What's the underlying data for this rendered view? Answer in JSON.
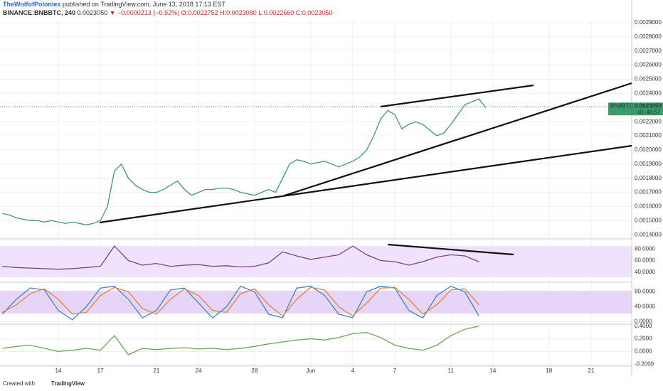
{
  "header": {
    "author": "TheWolfofPoloniex",
    "published": "published on TradingView.com, June 13, 2018 17:13 EST",
    "symbol": "BINANCE:BNBBTC, 240",
    "price": "0.0023050",
    "change": "▼ −0.0000213 (−0.92%)",
    "ohlc": [
      "O:0.0022752",
      "H:0.0023080",
      "L:0.0022660",
      "C:0.0023050"
    ]
  },
  "footer": {
    "created": "Created with",
    "brand": "TradingView"
  },
  "chart_data": [
    {
      "type": "line",
      "symbol": "BNBBTC",
      "countdown": "01:46:57",
      "last_price": {
        "value": 0.002305,
        "label": "0.0023050"
      },
      "color": "#3c9b6e",
      "x": [
        10,
        10.5,
        11,
        11.5,
        12,
        12.5,
        13,
        13.5,
        14,
        14.5,
        15,
        15.5,
        16,
        16.5,
        17,
        17.5,
        18,
        18.5,
        19,
        19.5,
        20,
        20.5,
        21,
        21.5,
        22,
        22.5,
        23,
        23.5,
        24,
        24.5,
        25,
        25.5,
        26,
        26.5,
        27,
        27.5,
        28,
        28.5,
        29,
        29.5,
        30,
        30.5,
        31,
        31.5,
        32,
        32.5,
        33,
        33.5,
        34,
        34.5,
        35,
        35.5,
        36,
        36.5,
        37,
        37.5,
        38,
        38.5,
        39,
        39.5,
        40,
        40.5,
        41,
        41.5,
        42,
        42.5,
        43,
        43.5,
        44,
        44.5
      ],
      "values": [
        0.00155,
        0.00154,
        0.00152,
        0.00151,
        0.0015,
        0.0015,
        0.00149,
        0.0015,
        0.00149,
        0.00148,
        0.00149,
        0.00148,
        0.00147,
        0.00148,
        0.0015,
        0.0016,
        0.00185,
        0.0019,
        0.0018,
        0.00175,
        0.00172,
        0.0017,
        0.0017,
        0.00172,
        0.00175,
        0.00178,
        0.00172,
        0.00168,
        0.0017,
        0.00172,
        0.00172,
        0.00173,
        0.00173,
        0.00172,
        0.0017,
        0.00169,
        0.00168,
        0.0017,
        0.00172,
        0.0017,
        0.0018,
        0.0019,
        0.00193,
        0.00192,
        0.0019,
        0.00191,
        0.00192,
        0.0019,
        0.00188,
        0.0019,
        0.00192,
        0.00195,
        0.002,
        0.0021,
        0.00222,
        0.00228,
        0.00225,
        0.00215,
        0.00218,
        0.0022,
        0.00218,
        0.00214,
        0.0021,
        0.00212,
        0.00218,
        0.00225,
        0.00232,
        0.00234,
        0.00236,
        0.0023
      ],
      "xlim": [
        9.84,
        54.9
      ],
      "ylim": [
        0.001376,
        0.00292
      ],
      "yticks": [
        {
          "value": 0.0014,
          "label": "0.0014000"
        },
        {
          "value": 0.0015,
          "label": "0.0015000"
        },
        {
          "value": 0.0016,
          "label": "0.0016000"
        },
        {
          "value": 0.0017,
          "label": "0.0017000"
        },
        {
          "value": 0.0018,
          "label": "0.0018000"
        },
        {
          "value": 0.0019,
          "label": "0.0019000"
        },
        {
          "value": 0.002,
          "label": "0.0020000"
        },
        {
          "value": 0.0021,
          "label": "0.0021000"
        },
        {
          "value": 0.0022,
          "label": "0.0022000"
        },
        {
          "value": 0.0024,
          "label": "0.0024000"
        },
        {
          "value": 0.0025,
          "label": "0.0025000"
        },
        {
          "value": 0.0026,
          "label": "0.0026000"
        },
        {
          "value": 0.0027,
          "label": "0.0027000"
        },
        {
          "value": 0.0028,
          "label": "0.0028000"
        },
        {
          "value": 0.0029,
          "label": "0.0029000"
        }
      ]
    },
    {
      "type": "line",
      "color": "#7b3f98",
      "x": [
        10,
        11,
        12,
        13,
        14,
        15,
        16,
        17,
        18,
        19,
        20,
        21,
        22,
        23,
        24,
        25,
        26,
        27,
        28,
        29,
        30,
        31,
        32,
        33,
        34,
        35,
        36,
        37,
        38,
        39,
        40,
        41,
        42,
        43,
        44
      ],
      "values": [
        50,
        48,
        47,
        46,
        45,
        46,
        48,
        50,
        85,
        60,
        52,
        55,
        50,
        52,
        53,
        50,
        51,
        49,
        50,
        56,
        75,
        68,
        62,
        66,
        70,
        85,
        70,
        60,
        58,
        52,
        58,
        66,
        70,
        68,
        58
      ],
      "xlim": [
        9.84,
        54.9
      ],
      "ylim": [
        25,
        95
      ],
      "yticks": [
        {
          "value": 40,
          "label": "40.0000"
        },
        {
          "value": 60,
          "label": "60.0000"
        },
        {
          "value": 80,
          "label": "80.0000"
        }
      ]
    },
    {
      "type": "line",
      "x": [
        10,
        11,
        12,
        13,
        14,
        15,
        16,
        17,
        18,
        19,
        20,
        21,
        22,
        23,
        24,
        25,
        26,
        27,
        28,
        29,
        30,
        31,
        32,
        33,
        34,
        35,
        36,
        37,
        38,
        39,
        40,
        41,
        42,
        43,
        44
      ],
      "series": [
        {
          "color": "#3d85c6",
          "values": [
            20,
            60,
            90,
            85,
            30,
            5,
            40,
            90,
            95,
            60,
            10,
            30,
            85,
            90,
            50,
            10,
            40,
            95,
            80,
            20,
            10,
            90,
            95,
            70,
            20,
            10,
            80,
            95,
            90,
            30,
            10,
            70,
            95,
            80,
            15
          ]
        },
        {
          "color": "#e8813b",
          "values": [
            25,
            45,
            75,
            88,
            60,
            20,
            25,
            70,
            92,
            80,
            35,
            20,
            60,
            88,
            70,
            30,
            25,
            75,
            88,
            45,
            15,
            60,
            92,
            85,
            40,
            15,
            50,
            90,
            92,
            60,
            20,
            45,
            85,
            88,
            45
          ]
        }
      ],
      "xlim": [
        9.84,
        54.9
      ],
      "ylim": [
        -5,
        100
      ],
      "yticks": [
        {
          "value": 0,
          "label": "0.0000"
        },
        {
          "value": 40,
          "label": "40.0000"
        },
        {
          "value": 80,
          "label": "80.0000"
        }
      ]
    },
    {
      "type": "line",
      "color": "#6aa84f",
      "x": [
        10,
        11,
        12,
        13,
        14,
        15,
        16,
        17,
        18,
        19,
        20,
        21,
        22,
        23,
        24,
        25,
        26,
        27,
        28,
        29,
        30,
        31,
        32,
        33,
        34,
        35,
        36,
        37,
        38,
        39,
        40,
        41,
        42,
        43,
        44
      ],
      "values": [
        0.05,
        0.08,
        0.1,
        0.05,
        0,
        0.02,
        0.05,
        0.02,
        0.25,
        -0.05,
        0.05,
        0.03,
        0.05,
        0.06,
        0.04,
        0.05,
        0.03,
        0.05,
        0.08,
        0.12,
        0.15,
        0.18,
        0.2,
        0.18,
        0.22,
        0.28,
        0.3,
        0.22,
        0.1,
        0.05,
        0.02,
        0.1,
        0.25,
        0.35,
        0.4
      ],
      "xlim": [
        9.84,
        54.9
      ],
      "ylim": [
        -0.23,
        0.43
      ],
      "yticks": [
        {
          "value": -0.2,
          "label": "-0.2000"
        },
        {
          "value": 0,
          "label": "0.0000"
        },
        {
          "value": 0.2,
          "label": "0.2000"
        },
        {
          "value": 0.4,
          "label": "0.4000"
        }
      ],
      "xticks": [
        14,
        17,
        21,
        24,
        28,
        {
          "value": 32,
          "label": "Jun"
        },
        {
          "value": 35,
          "label": "4"
        },
        {
          "value": 38,
          "label": "7"
        },
        {
          "value": 42,
          "label": "11"
        },
        {
          "value": 45,
          "label": "14"
        },
        {
          "value": 49,
          "label": "18"
        },
        {
          "value": 52,
          "label": "21"
        }
      ]
    }
  ]
}
